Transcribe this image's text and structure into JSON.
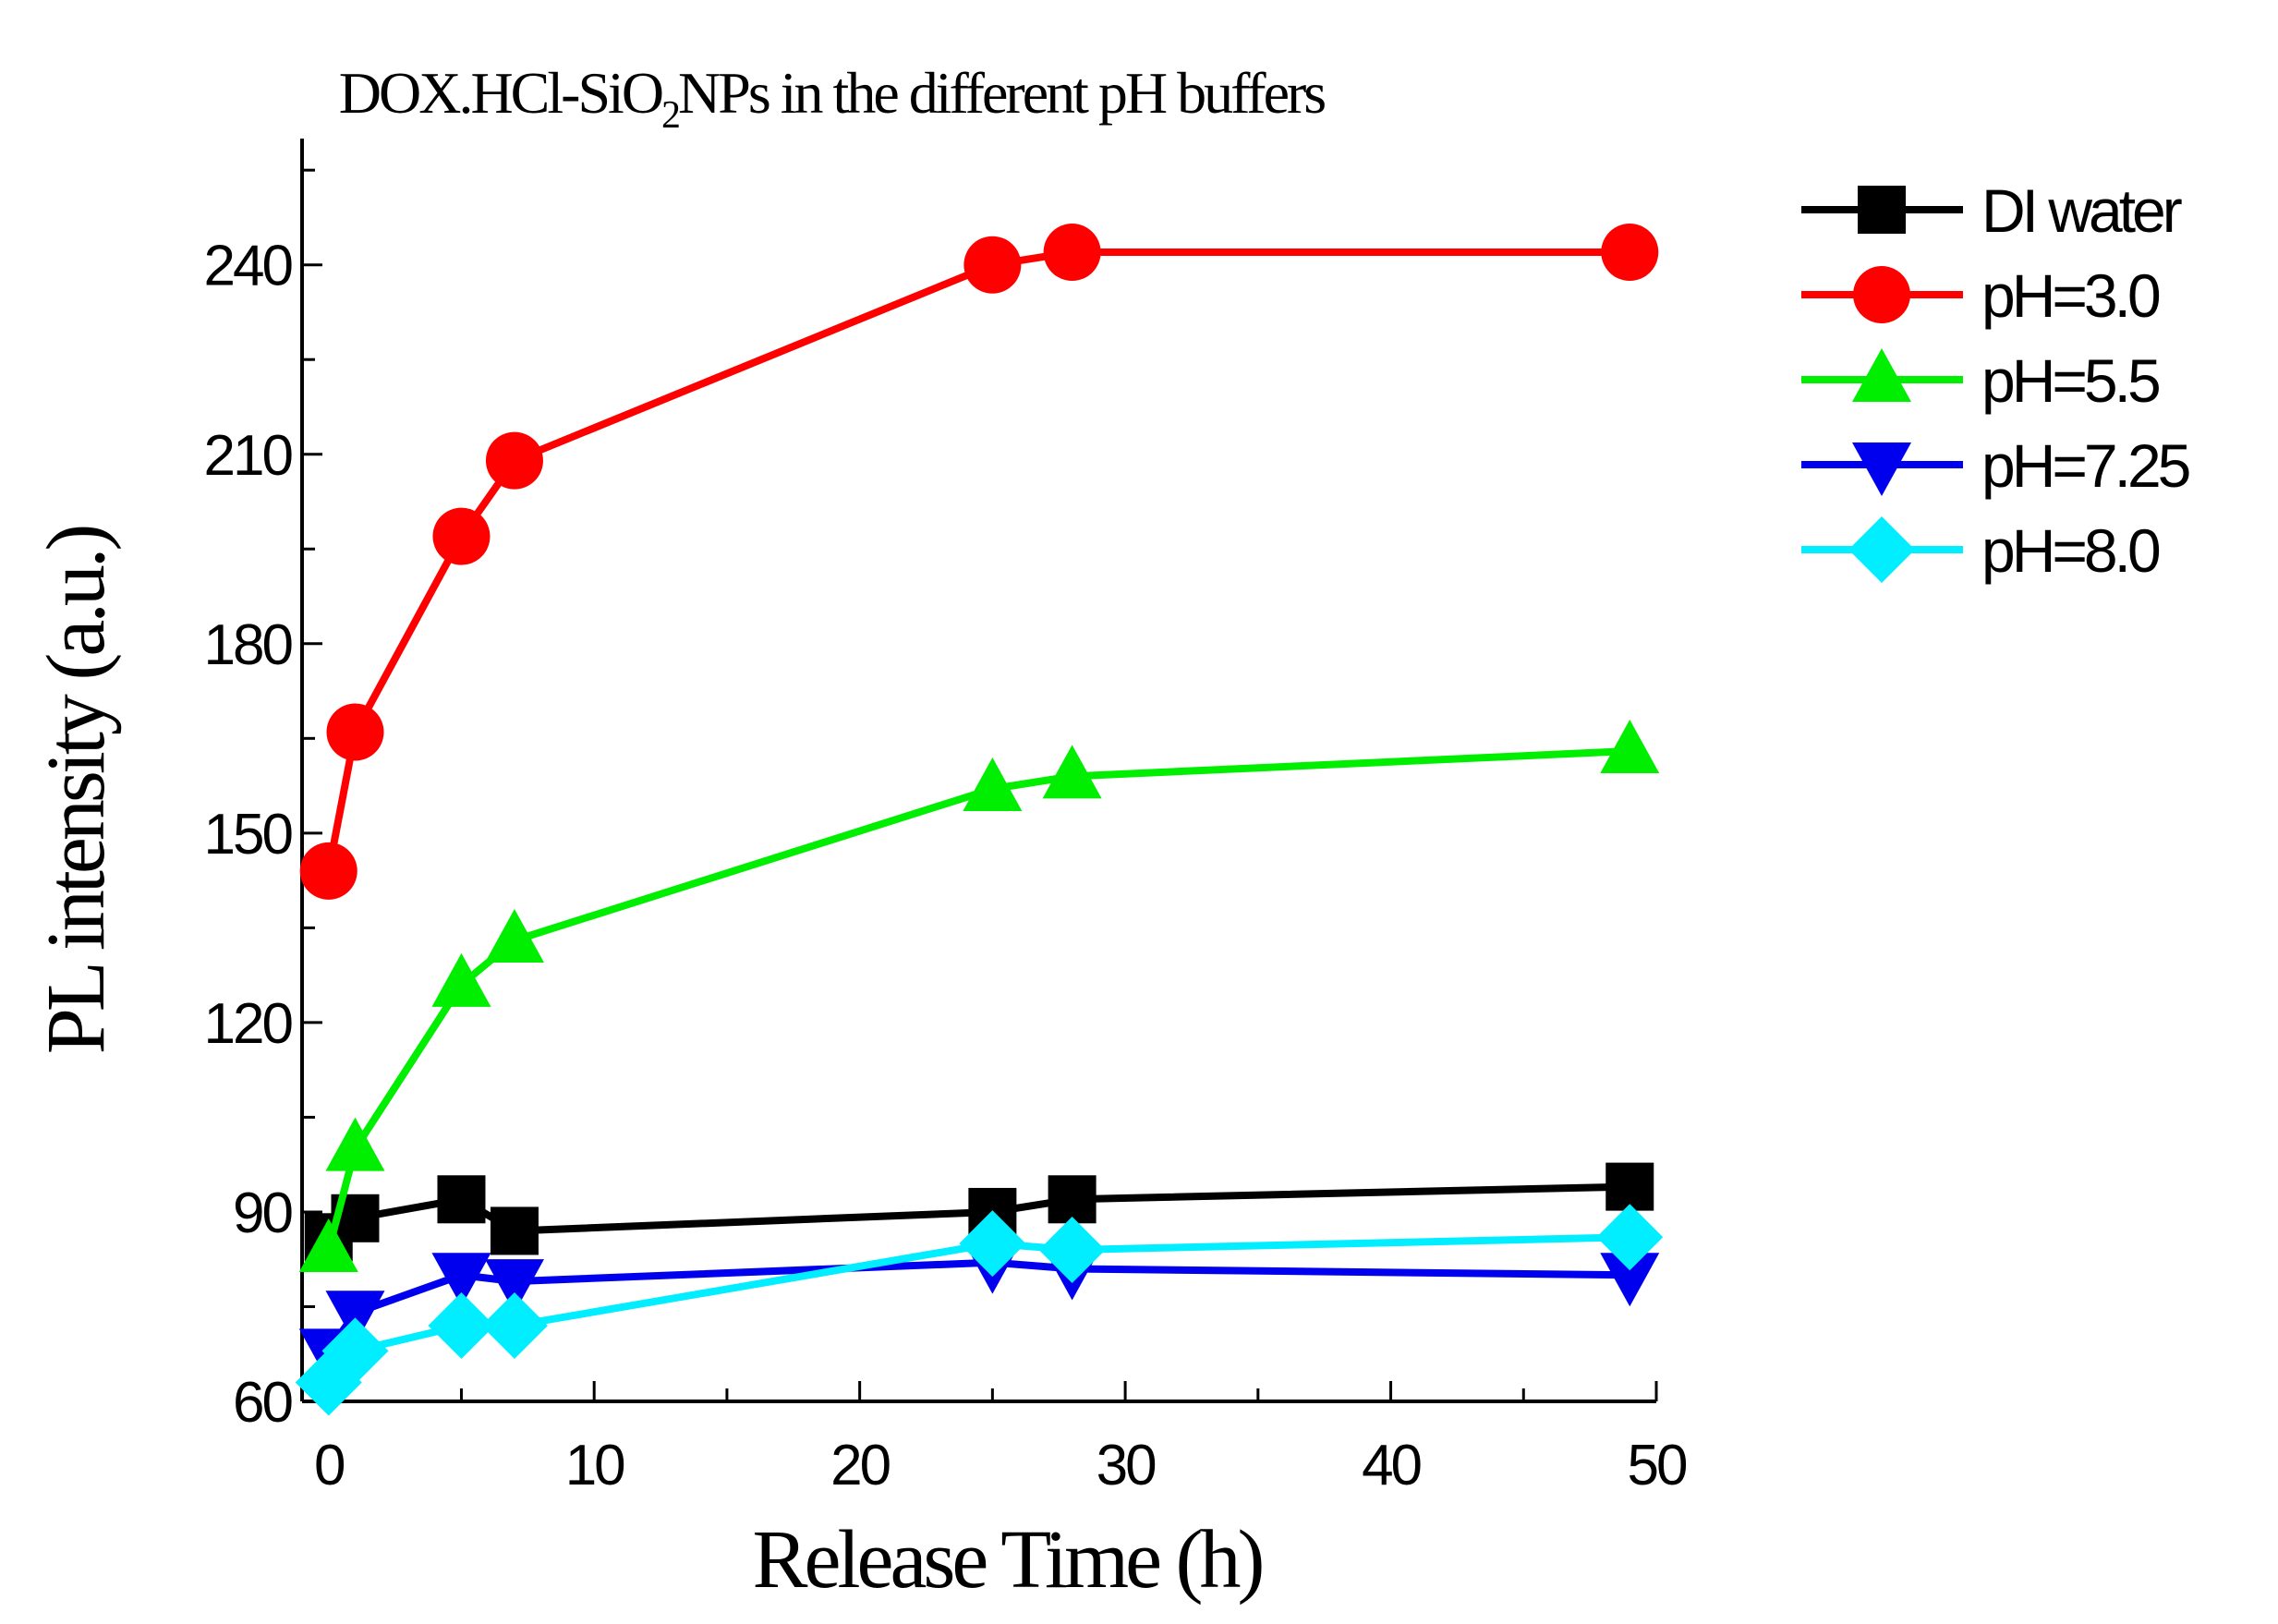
{
  "chart_data": {
    "type": "line",
    "title_parts": [
      "DOX.HCl-SiO",
      "2",
      "NPs in the different pH buffers"
    ],
    "xlabel": "Release Time (h)",
    "ylabel": "PL intensity (a.u.)",
    "xlim": [
      -1,
      50
    ],
    "ylim": [
      60,
      260
    ],
    "xticks": [
      0,
      10,
      20,
      30,
      40,
      50
    ],
    "yticks": [
      60,
      90,
      120,
      150,
      180,
      210,
      240
    ],
    "x": [
      0,
      1,
      5,
      7,
      25,
      28,
      49
    ],
    "legend_position": "top-right",
    "series": [
      {
        "name": "DI water",
        "color": "#000000",
        "marker": "square",
        "values": [
          86,
          89,
          92,
          87,
          90,
          92,
          94
        ]
      },
      {
        "name": "pH=3.0",
        "color": "#ff0000",
        "marker": "circle",
        "values": [
          144,
          166,
          197,
          209,
          240,
          242,
          242
        ]
      },
      {
        "name": "pH=5.5",
        "color": "#00ee00",
        "marker": "triangle-up",
        "values": [
          84,
          100,
          126,
          133,
          157,
          159,
          163
        ]
      },
      {
        "name": "pH=7.25",
        "color": "#0000ee",
        "marker": "triangle-down",
        "values": [
          68,
          74,
          80,
          79,
          82,
          81,
          80
        ]
      },
      {
        "name": "pH=8.0",
        "color": "#00eeff",
        "marker": "diamond",
        "values": [
          63,
          68,
          72,
          72,
          85,
          84,
          86
        ]
      }
    ]
  }
}
